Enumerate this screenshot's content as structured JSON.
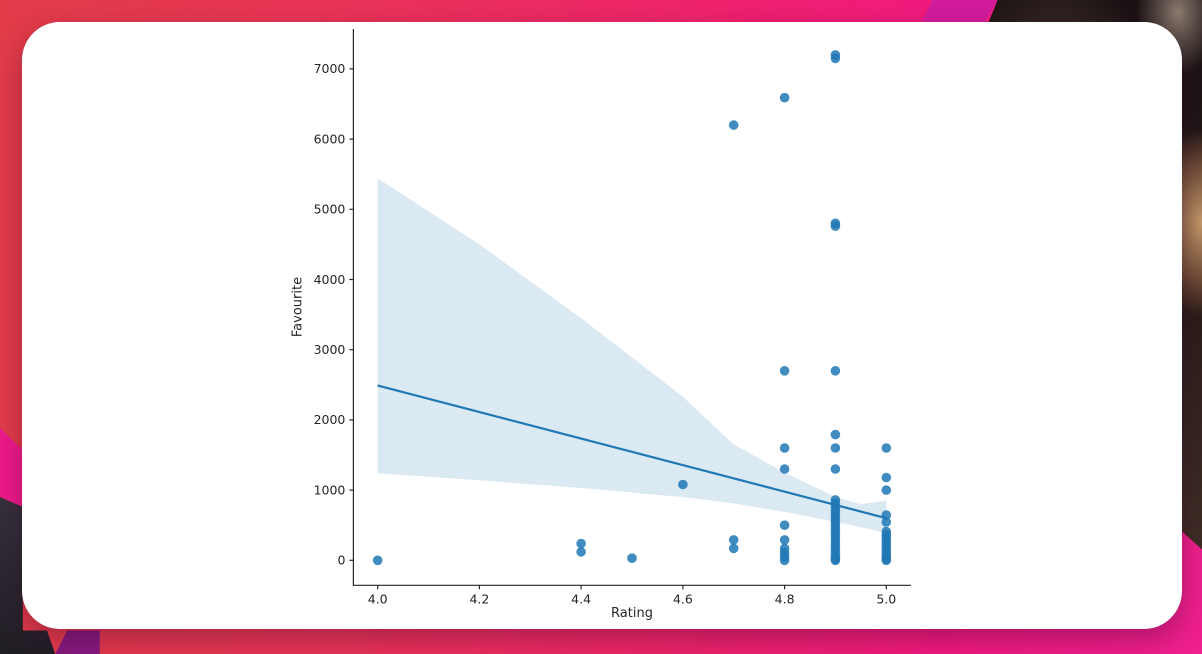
{
  "chart_data": {
    "type": "scatter",
    "title": "",
    "xlabel": "Rating",
    "ylabel": "Favourite",
    "xlim": [
      3.95,
      5.05
    ],
    "ylim": [
      -360,
      7570
    ],
    "grid": false,
    "legend": "none",
    "xticks": [
      4.0,
      4.2,
      4.4,
      4.6,
      4.8,
      5.0
    ],
    "xtick_labels": [
      "4.0",
      "4.2",
      "4.4",
      "4.6",
      "4.8",
      "5.0"
    ],
    "yticks": [
      0,
      1000,
      2000,
      3000,
      4000,
      5000,
      6000,
      7000
    ],
    "ytick_labels": [
      "0",
      "1000",
      "2000",
      "3000",
      "4000",
      "5000",
      "6000",
      "7000"
    ],
    "points": [
      [
        4.0,
        0
      ],
      [
        4.4,
        240
      ],
      [
        4.4,
        120
      ],
      [
        4.5,
        30
      ],
      [
        4.6,
        1080
      ],
      [
        4.7,
        6200
      ],
      [
        4.7,
        290
      ],
      [
        4.7,
        170
      ],
      [
        4.8,
        6590
      ],
      [
        4.8,
        2700
      ],
      [
        4.8,
        1600
      ],
      [
        4.8,
        1300
      ],
      [
        4.8,
        500
      ],
      [
        4.8,
        290
      ],
      [
        4.8,
        170
      ],
      [
        4.8,
        110
      ],
      [
        4.8,
        50
      ],
      [
        4.8,
        0
      ],
      [
        4.9,
        7200
      ],
      [
        4.9,
        7150
      ],
      [
        4.9,
        4800
      ],
      [
        4.9,
        4760
      ],
      [
        4.9,
        2700
      ],
      [
        4.9,
        1790
      ],
      [
        4.9,
        1600
      ],
      [
        4.9,
        1300
      ],
      [
        4.9,
        860
      ],
      [
        4.9,
        810
      ],
      [
        4.9,
        760
      ],
      [
        4.9,
        710
      ],
      [
        4.9,
        660
      ],
      [
        4.9,
        610
      ],
      [
        4.9,
        560
      ],
      [
        4.9,
        510
      ],
      [
        4.9,
        460
      ],
      [
        4.9,
        410
      ],
      [
        4.9,
        360
      ],
      [
        4.9,
        310
      ],
      [
        4.9,
        260
      ],
      [
        4.9,
        210
      ],
      [
        4.9,
        160
      ],
      [
        4.9,
        110
      ],
      [
        4.9,
        60
      ],
      [
        4.9,
        20
      ],
      [
        4.9,
        0
      ],
      [
        5.0,
        1600
      ],
      [
        5.0,
        1180
      ],
      [
        5.0,
        1000
      ],
      [
        5.0,
        645
      ],
      [
        5.0,
        545
      ],
      [
        5.0,
        410
      ],
      [
        5.0,
        365
      ],
      [
        5.0,
        320
      ],
      [
        5.0,
        275
      ],
      [
        5.0,
        230
      ],
      [
        5.0,
        185
      ],
      [
        5.0,
        140
      ],
      [
        5.0,
        95
      ],
      [
        5.0,
        50
      ],
      [
        5.0,
        20
      ],
      [
        5.0,
        0
      ]
    ],
    "regression": {
      "x": [
        4.0,
        5.0
      ],
      "y": [
        2490,
        600
      ]
    },
    "ci_band": {
      "x": [
        4.0,
        4.2,
        4.4,
        4.6,
        4.7,
        4.8,
        4.9,
        4.95,
        5.0
      ],
      "upper": [
        5440,
        4500,
        3450,
        2330,
        1650,
        1250,
        900,
        800,
        850
      ],
      "lower": [
        1240,
        1140,
        1030,
        900,
        810,
        690,
        550,
        470,
        390
      ]
    },
    "colors": {
      "marker": "#1f77b4",
      "marker_opacity": 0.85,
      "line": "#1f77b4",
      "band": "#1f77b4",
      "band_opacity": 0.16,
      "axis": "#262626"
    }
  },
  "background": {
    "left_color": "#e23c49",
    "mid_color": "#ee2569",
    "right_color": "#ee1f8e",
    "magenta_band": "#d11c9c",
    "purple_wedge": "#a81e9c",
    "card_color": "#ffffff"
  }
}
